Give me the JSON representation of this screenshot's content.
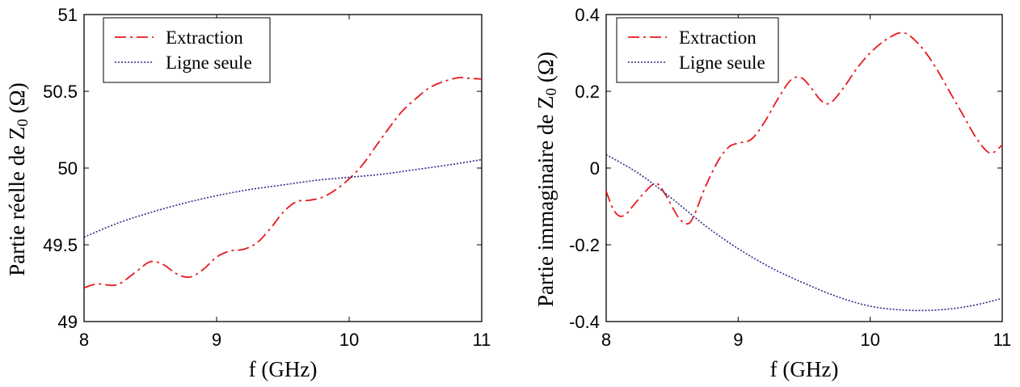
{
  "chart_data": [
    {
      "type": "line",
      "xlabel": "f (GHz)",
      "ylabel": "Partie réelle de Z₀ (Ω)",
      "xlim": [
        8,
        11
      ],
      "ylim": [
        49,
        51
      ],
      "xticks": [
        8,
        9,
        10,
        11
      ],
      "xtick_labels": [
        "8",
        "9",
        "10",
        "11"
      ],
      "yticks": [
        49,
        49.5,
        50,
        50.5,
        51
      ],
      "ytick_labels": [
        "49",
        "49.5",
        "50",
        "50.5",
        "51"
      ],
      "grid": false,
      "legend_position": "top-left",
      "series": [
        {
          "name": "Extraction",
          "color": "#e8191f",
          "style": "dash-dot",
          "x": [
            8.0,
            8.1,
            8.25,
            8.4,
            8.5,
            8.6,
            8.7,
            8.8,
            8.9,
            9.0,
            9.1,
            9.2,
            9.3,
            9.4,
            9.5,
            9.6,
            9.7,
            9.8,
            9.9,
            10.0,
            10.1,
            10.2,
            10.3,
            10.4,
            10.5,
            10.6,
            10.7,
            10.8,
            10.85,
            10.9,
            11.0
          ],
          "y": [
            49.22,
            49.245,
            49.24,
            49.33,
            49.39,
            49.37,
            49.31,
            49.29,
            49.34,
            49.42,
            49.46,
            49.47,
            49.51,
            49.6,
            49.71,
            49.78,
            49.79,
            49.81,
            49.86,
            49.93,
            50.02,
            50.14,
            50.26,
            50.37,
            50.45,
            50.52,
            50.56,
            50.585,
            50.59,
            50.585,
            50.58
          ]
        },
        {
          "name": "Ligne seule",
          "color": "#2b2b8c",
          "style": "dotted",
          "x": [
            8.0,
            8.25,
            8.5,
            8.75,
            9.0,
            9.25,
            9.5,
            9.75,
            10.0,
            10.25,
            10.5,
            10.75,
            11.0
          ],
          "y": [
            49.55,
            49.64,
            49.71,
            49.77,
            49.82,
            49.86,
            49.89,
            49.92,
            49.94,
            49.96,
            49.99,
            50.02,
            50.055
          ]
        }
      ]
    },
    {
      "type": "line",
      "xlabel": "f (GHz)",
      "ylabel": "Partie immaginaire de Z₀ (Ω)",
      "xlim": [
        8,
        11
      ],
      "ylim": [
        -0.4,
        0.4
      ],
      "xticks": [
        8,
        9,
        10,
        11
      ],
      "xtick_labels": [
        "8",
        "9",
        "10",
        "11"
      ],
      "yticks": [
        -0.4,
        -0.2,
        0,
        0.2,
        0.4
      ],
      "ytick_labels": [
        "-0.4",
        "-0.2",
        "0",
        "0.2",
        "0.4"
      ],
      "grid": false,
      "legend_position": "top-left",
      "series": [
        {
          "name": "Extraction",
          "color": "#e8191f",
          "style": "dash-dot",
          "x": [
            8.0,
            8.05,
            8.1,
            8.15,
            8.2,
            8.3,
            8.38,
            8.45,
            8.55,
            8.62,
            8.67,
            8.75,
            8.85,
            8.93,
            9.0,
            9.1,
            9.2,
            9.3,
            9.4,
            9.48,
            9.55,
            9.63,
            9.7,
            9.8,
            9.9,
            10.0,
            10.1,
            10.2,
            10.25,
            10.3,
            10.4,
            10.5,
            10.6,
            10.7,
            10.8,
            10.88,
            10.93,
            11.0
          ],
          "y": [
            -0.06,
            -0.105,
            -0.125,
            -0.12,
            -0.1,
            -0.06,
            -0.04,
            -0.07,
            -0.13,
            -0.145,
            -0.12,
            -0.05,
            0.02,
            0.055,
            0.065,
            0.075,
            0.12,
            0.18,
            0.23,
            0.235,
            0.21,
            0.175,
            0.17,
            0.21,
            0.26,
            0.3,
            0.33,
            0.35,
            0.352,
            0.345,
            0.31,
            0.26,
            0.2,
            0.14,
            0.08,
            0.045,
            0.04,
            0.06
          ]
        },
        {
          "name": "Ligne seule",
          "color": "#2b2b8c",
          "style": "dotted",
          "x": [
            8.0,
            8.25,
            8.5,
            8.75,
            9.0,
            9.25,
            9.5,
            9.75,
            10.0,
            10.25,
            10.5,
            10.75,
            11.0
          ],
          "y": [
            0.035,
            -0.015,
            -0.08,
            -0.15,
            -0.21,
            -0.26,
            -0.3,
            -0.335,
            -0.36,
            -0.37,
            -0.37,
            -0.36,
            -0.34
          ]
        }
      ]
    }
  ]
}
